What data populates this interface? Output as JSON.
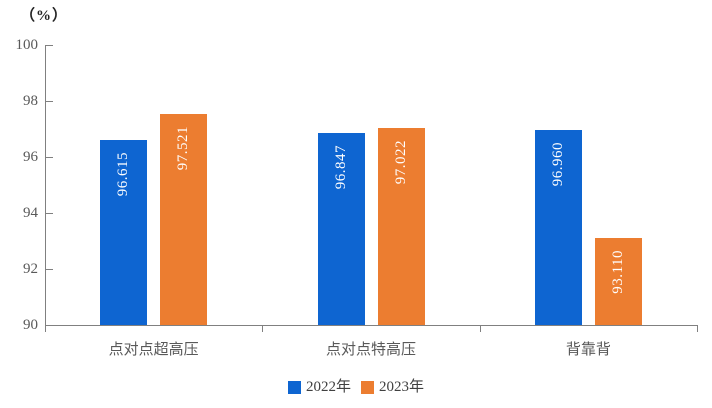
{
  "chart_data": {
    "type": "bar",
    "title": "",
    "ylabel": "（%）",
    "xlabel": "",
    "ylim": [
      90,
      100
    ],
    "y_ticks": [
      90,
      92,
      94,
      96,
      98,
      100
    ],
    "grid": false,
    "legend_position": "bottom",
    "categories": [
      "点对点超高压",
      "点对点特高压",
      "背靠背"
    ],
    "series": [
      {
        "name": "2022年",
        "color": "#0E65D1",
        "values": [
          96.615,
          96.847,
          96.96
        ],
        "value_labels": [
          "96.615",
          "96.847",
          "96.960"
        ]
      },
      {
        "name": "2023年",
        "color": "#EC7D30",
        "values": [
          97.521,
          97.022,
          93.11
        ],
        "value_labels": [
          "97.521",
          "97.022",
          "93.110"
        ]
      }
    ],
    "value_label_color": "#ffffff",
    "axis_color": "#808080",
    "tick_label_color": "#595959"
  }
}
